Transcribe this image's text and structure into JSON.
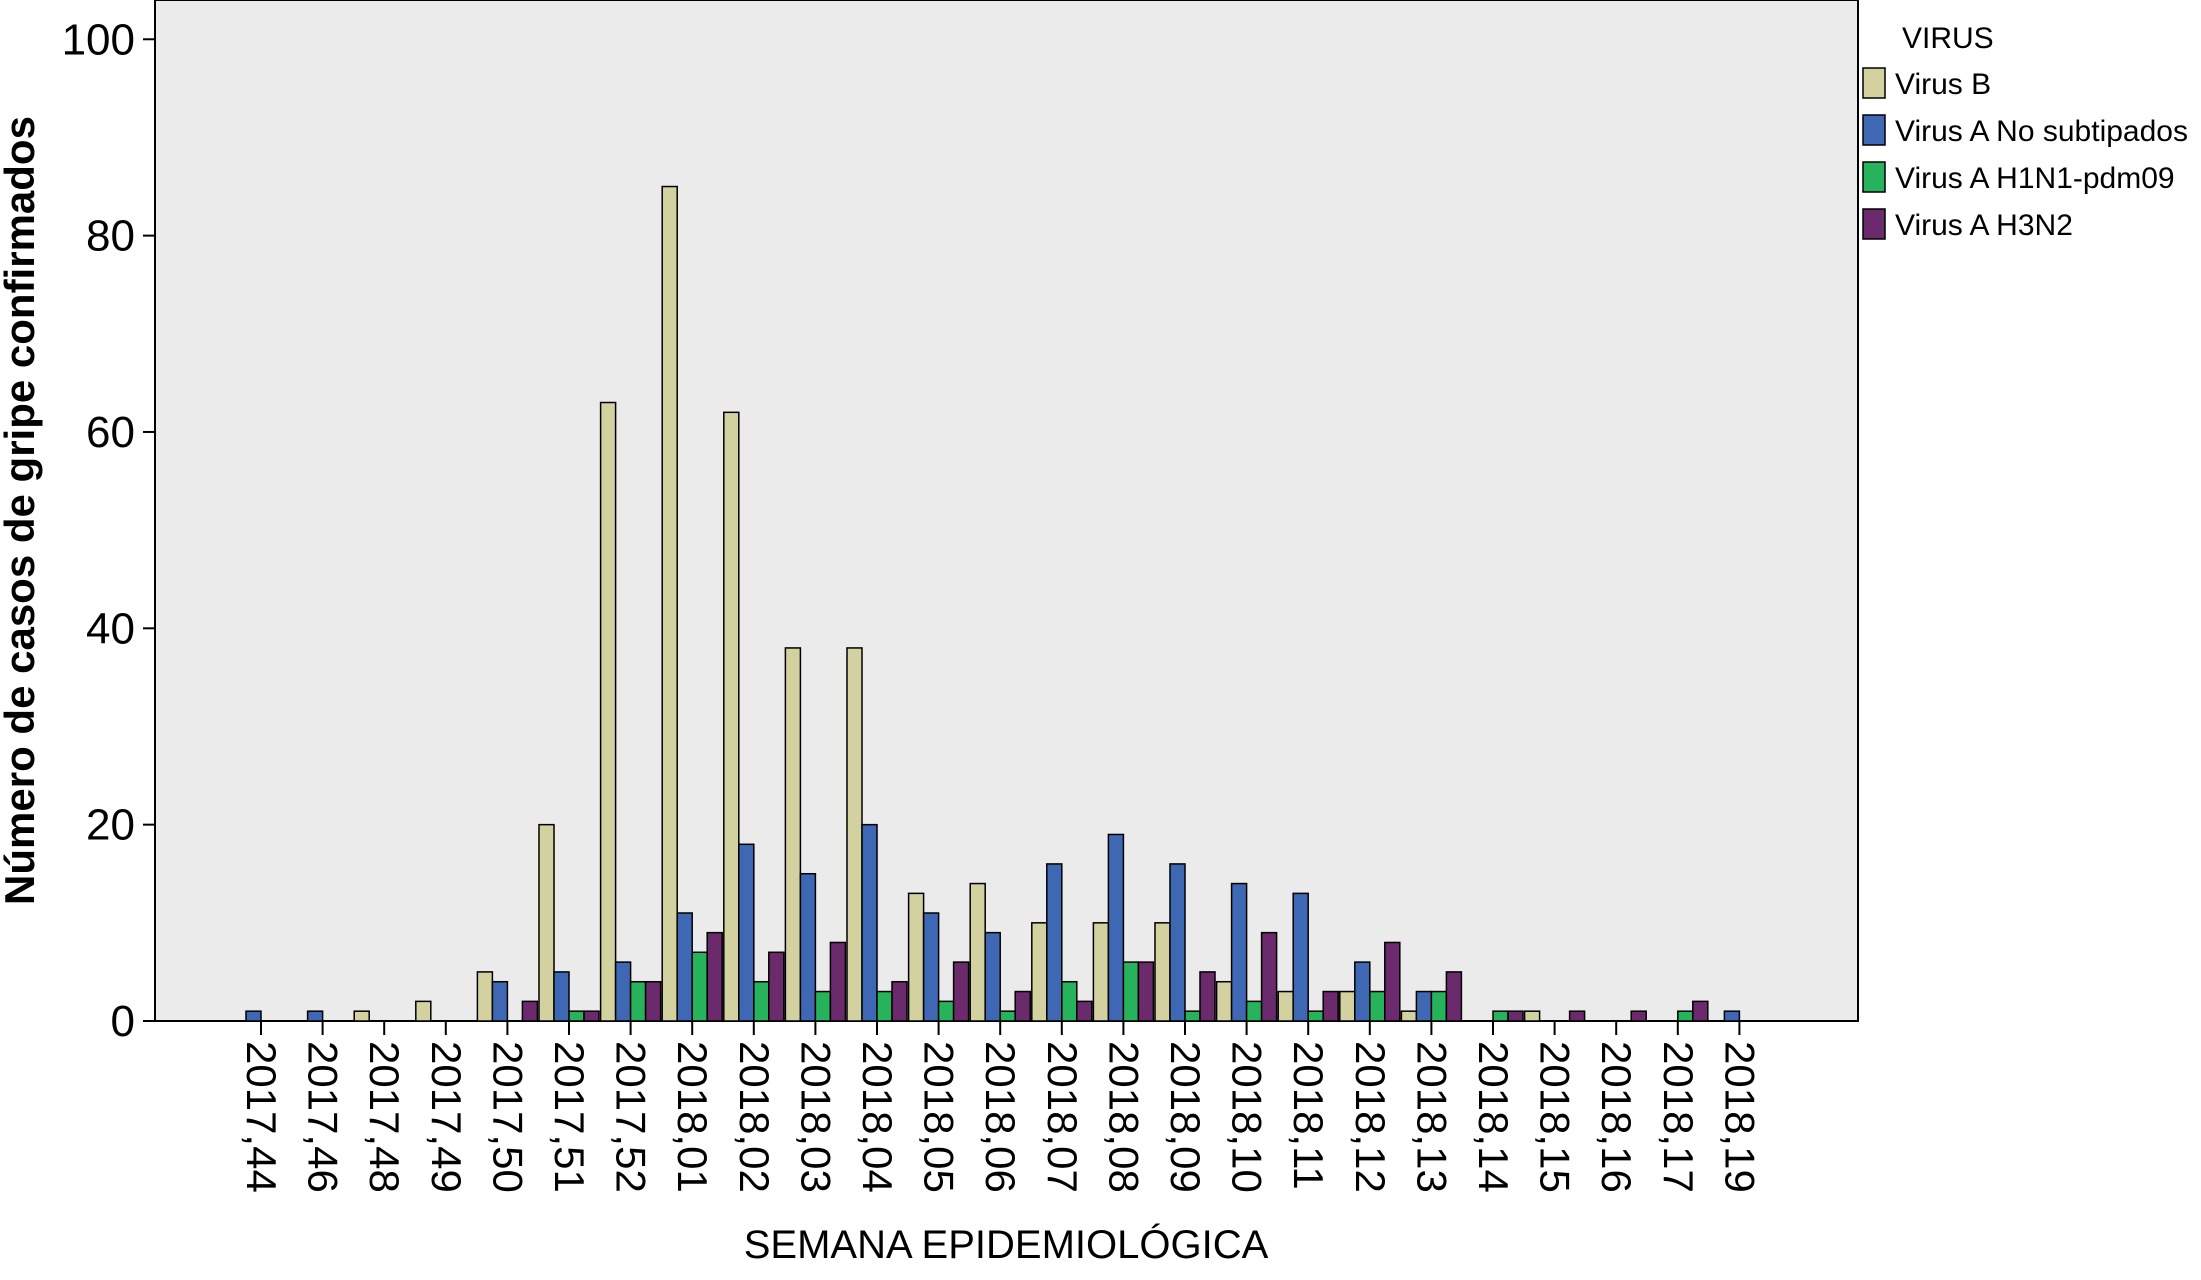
{
  "chart_data": {
    "type": "bar",
    "title": "",
    "xlabel": "SEMANA EPIDEMIOLÓGICA",
    "ylabel": "Número de casos de gripe confirmados",
    "ylim": [
      0,
      104
    ],
    "yticks": [
      0,
      20,
      40,
      60,
      80,
      100
    ],
    "grid": false,
    "legend_position": "right",
    "legend_title": "VIRUS",
    "categories": [
      "2017,44",
      "2017,46",
      "2017,48",
      "2017,49",
      "2017,50",
      "2017,51",
      "2017,52",
      "2018,01",
      "2018,02",
      "2018,03",
      "2018,04",
      "2018,05",
      "2018,06",
      "2018,07",
      "2018,08",
      "2018,09",
      "2018,10",
      "2018,11",
      "2018,12",
      "2018,13",
      "2018,14",
      "2018,15",
      "2018,16",
      "2018,17",
      "2018,19"
    ],
    "series": [
      {
        "name": "Virus B",
        "color": "#d3d19f",
        "values": [
          0,
          0,
          1,
          2,
          5,
          20,
          63,
          85,
          62,
          38,
          38,
          13,
          14,
          10,
          10,
          10,
          4,
          3,
          3,
          1,
          0,
          1,
          0,
          0,
          0
        ]
      },
      {
        "name": "Virus A No subtipados",
        "color": "#3e68b4",
        "values": [
          1,
          1,
          0,
          0,
          4,
          5,
          6,
          11,
          18,
          15,
          20,
          11,
          9,
          16,
          19,
          16,
          14,
          13,
          6,
          3,
          0,
          0,
          0,
          0,
          1
        ]
      },
      {
        "name": "Virus A H1N1-pdm09",
        "color": "#27b35c",
        "values": [
          0,
          0,
          0,
          0,
          0,
          1,
          4,
          7,
          4,
          3,
          3,
          2,
          1,
          4,
          6,
          1,
          2,
          1,
          3,
          3,
          1,
          0,
          0,
          1,
          0
        ]
      },
      {
        "name": "Virus A H3N2",
        "color": "#6b2a6b",
        "values": [
          0,
          0,
          0,
          0,
          2,
          1,
          4,
          9,
          7,
          8,
          4,
          6,
          3,
          2,
          6,
          5,
          9,
          3,
          8,
          5,
          1,
          1,
          1,
          2,
          0
        ]
      }
    ],
    "plot_background": "#ebebeb"
  }
}
